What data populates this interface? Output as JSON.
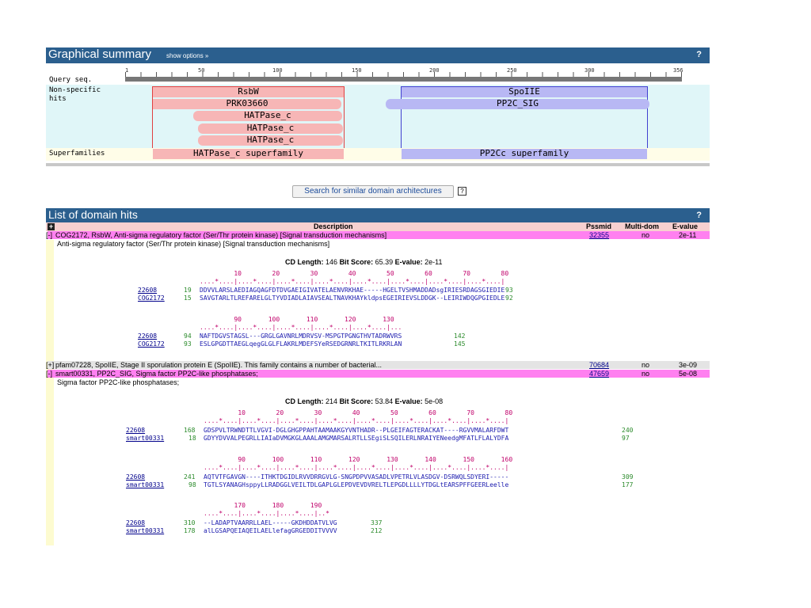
{
  "summary": {
    "title": "Graphical summary",
    "show_options": "show options »",
    "help": "?",
    "query_label": "Query seq.",
    "nonspecific_label": "Non-specific",
    "hits_label": "hits",
    "superfamilies_label": "Superfamilies",
    "ruler_ticks": [
      "1",
      "50",
      "100",
      "150",
      "200",
      "250",
      "300",
      "356"
    ],
    "hits": {
      "rsbw": "RsbW",
      "prk": "PRK03660",
      "hat1": "HATPase_c",
      "hat2": "HATPase_c",
      "hat3": "HATPase_c",
      "spoiie": "SpoIIE",
      "pp2c_sig": "PP2C_SIG"
    },
    "superfamilies": {
      "hatpase": "HATPase_c superfamily",
      "pp2cc": "PP2Cc superfamily"
    },
    "colors": {
      "bar": "#2b5f8e",
      "red_fill": "#f7b6b6",
      "blue_fill": "#b8b8f4",
      "query_bg": "#e0f6f8"
    }
  },
  "search_button": "Search for similar domain architectures",
  "list": {
    "title": "List of domain hits",
    "help": "?",
    "headers": {
      "description": "Description",
      "pssmid": "Pssmid",
      "multidom": "Multi-dom",
      "evalue": "E-value"
    },
    "rows": [
      {
        "toggle": "[-]",
        "desc": "COG2172, RsbW, Anti-sigma regulatory factor (Ser/Thr protein kinase) [Signal transduction mechanisms]",
        "pssmid": "32355",
        "multidom": "no",
        "evalue": "2e-11",
        "sub": "Anti-sigma regulatory factor (Ser/Thr protein kinase) [Signal transduction mechanisms]"
      },
      {
        "toggle": "[+]",
        "desc": "pfam07228, SpoIIE, Stage II sporulation protein E (SpoIIE). This family contains a number of bacterial...",
        "pssmid": "70684",
        "multidom": "no",
        "evalue": "3e-09"
      },
      {
        "toggle": "[-]",
        "desc": "smart00331, PP2C_SIG, Sigma factor PP2C-like phosphatases;",
        "pssmid": "47659",
        "multidom": "no",
        "evalue": "5e-08",
        "sub": "Sigma factor PP2C-like phosphatases;"
      }
    ]
  },
  "aln1": {
    "stats_cd": "CD Length:",
    "stats_cd_val": "146",
    "stats_bit": "Bit Score:",
    "stats_bit_val": "65.39",
    "stats_e": "E-value:",
    "stats_e_val": "2e-11",
    "block1": {
      "nums": "         10        20        30        40        50        60        70        80",
      "dots": "....*....|....*....|....*....|....*....|....*....|....*....|....*....|....*....|",
      "q_name": "22608",
      "q_start": "19",
      "q_seq": "DDVVLARSLAEDIAGQAGFDTDVGAEIGIVATELAENVRKHAE-----HGELTVSHMADDADsgIRIESRDAGSGIEDIE",
      "q_end": "93",
      "s_name": "COG2172",
      "s_start": "15",
      "s_seq": "SAVGTARLTLREFARELGLTYVDIADLAIAVSEALTNAVKHAYkldpsEGEIRIEVSLDDGK--LEIRIWDQGPGIEDLE",
      "s_end": "92"
    },
    "block2": {
      "nums": "         90       100       110       120       130",
      "dots": "....*....|....*....|....*....|....*....|....*....|...",
      "q_name": "22608",
      "q_start": "94",
      "q_seq": "NAFTDGVSTAGSL---GRGLGAVNRLMDRVSV-MSPGTPGNGTHVTADRWVRS",
      "q_end": "142",
      "s_name": "COG2172",
      "s_start": "93",
      "s_seq": "ESLGPGDTTAEGLqegGLGLFLAKRLMDEFSYeRSEDGRNRLTKITLRKRLAN",
      "s_end": "145"
    }
  },
  "aln2": {
    "stats_cd": "CD Length:",
    "stats_cd_val": "214",
    "stats_bit": "Bit Score:",
    "stats_bit_val": "53.84",
    "stats_e": "E-value:",
    "stats_e_val": "5e-08",
    "block1": {
      "nums": "         10        20        30        40        50        60        70        80",
      "dots": "....*....|....*....|....*....|....*....|....*....|....*....|....*....|....*....|",
      "q_name": "22608",
      "q_start": "168",
      "q_seq": "GDSPVLTRWNDTTLVGVI-DGLGHGPPAHTAAMAAKGYVNTHADR--PLGEIFAGTERACKAT----RGVVMALARFDWT",
      "q_end": "240",
      "s_name": "smart00331",
      "s_start": "18",
      "s_seq": "GDYYDVVALPEGRLLIAIaDVMGKGLAAALAMGMARSALRTLLSEgiSLSQILERLNRAIYENeedgMFATLFLALYDFA",
      "s_end": "97"
    },
    "block2": {
      "nums": "         90       100       110       120       130       140       150       160",
      "dots": "....*....|....*....|....*....|....*....|....*....|....*....|....*....|....*....|",
      "q_name": "22608",
      "q_start": "241",
      "q_seq": "AQTVTFGAVGN----ITHKTDGIDLRVVDRRGVLG-SNGPDPVVASADLVPETRLVLASDGV-DSRWQLSDYERI-----",
      "q_end": "309",
      "s_name": "smart00331",
      "s_start": "98",
      "s_seq": "TGTLSYANAGHsppyLLRADGGLVEILTDLGAPLGLEPDVEVDVRELTLEPGDLLLLYTDGLtEARSPFFGEERLeelle",
      "s_end": "177"
    },
    "block3": {
      "nums": "        170       180       190",
      "dots": "....*....|....*....|....*....|..*",
      "q_name": "22608",
      "q_start": "310",
      "q_seq": "--LADAPTVAARRLLAEL-----GKDHDDATVLVG",
      "q_end": "337",
      "s_name": "smart00331",
      "s_start": "178",
      "s_seq": "alLGSAPQEIAQEILAELlefagGRGEDDITVVVV",
      "s_end": "212"
    }
  }
}
